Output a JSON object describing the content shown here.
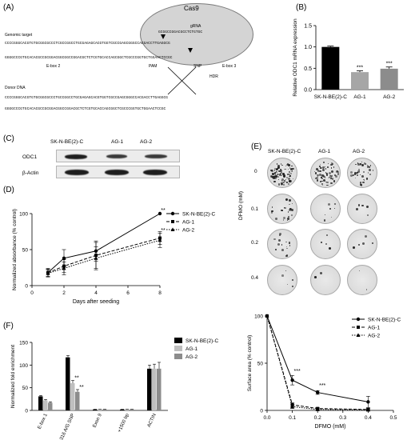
{
  "panels": {
    "A": "(A)",
    "B": "(B)",
    "C": "(C)",
    "D": "(D)",
    "E": "(E)",
    "F": "(F)"
  },
  "panelA": {
    "cas9": "Cas9",
    "grna_label": "gRNA",
    "grna_seq": "GCGGCCGGACGCCTCTGTGC",
    "genomic_label": "Genomic target",
    "donor_label": "Donor DNA",
    "hdr": "HDR",
    "ebox2": "E-box 2",
    "pam": "PAM",
    "snp": "SNP",
    "ebox3": "E-box 3",
    "genomic_top": "CCCCGGGCACGTGTGCGGCGCCCTCGCCGGCCTGCGAGAGCACGTGGTCGCCGAGCGGGCCACGACCTTGAGGCG",
    "genomic_bot": "GGGGCCCGTGCACACGCCGCGGACGGCGGCCGGACGCTCTCGTGCACCAGCGGCTCGCCCGGTGCTGGAACTCCGC",
    "donor_top": "CCCCGGGCACGTGTGCGGCGCCCTGCCGGCCTGCGAGAGCACGTGGTCGCCGAGCGGGCCACGACCTTGAGGCG",
    "donor_bot": "GGGGCCCGTGCACACGCCGCGGACGGCCGGACGCTCTCGTGCACCAGCGGCTCGCCCGGTGCTGGAACTCCGC"
  },
  "panelC": {
    "samples": [
      "SK-N-BE(2)-C",
      "AG-1",
      "AG-2"
    ],
    "rows": [
      "ODC1",
      "β-Actin"
    ]
  },
  "panelE": {
    "samples": [
      "SK-N-BE(2)-C",
      "AG-1",
      "AG-2"
    ],
    "doses": [
      "0",
      "0.1",
      "0.2",
      "0.4"
    ],
    "axis_label": "DFMO (mM)"
  },
  "chart_data": [
    {
      "id": "B",
      "type": "bar",
      "categories": [
        "SK-N-BE(2)-C",
        "AG-1",
        "AG-2"
      ],
      "values": [
        1.0,
        0.41,
        0.49
      ],
      "errors": [
        0.02,
        0.03,
        0.04
      ],
      "colors": [
        "#000000",
        "#a6a6a6",
        "#8c8c8c"
      ],
      "annotations": [
        "",
        "***",
        "***"
      ],
      "ylabel": "Relative ODC1 mRNA expression",
      "ylim": [
        0,
        1.5
      ],
      "yticks": [
        "0.0",
        "0.5",
        "1.0",
        "1.5"
      ]
    },
    {
      "id": "D",
      "type": "line",
      "xlabel": "Days after seeding",
      "ylabel": "Normalized absorbance (% control)",
      "xlim": [
        0,
        8
      ],
      "ylim": [
        0,
        100
      ],
      "xticks": [
        "0",
        "2",
        "4",
        "6",
        "8"
      ],
      "yticks": [
        "0",
        "50",
        "100"
      ],
      "x": [
        1,
        2,
        4,
        8
      ],
      "series": [
        {
          "name": "SK-N-BE(2)-C",
          "values": [
            18,
            38,
            48,
            100
          ],
          "errors": [
            6,
            12,
            14,
            0
          ],
          "marker": "circle",
          "dash": ""
        },
        {
          "name": "AG-1",
          "values": [
            18,
            27,
            42,
            66
          ],
          "errors": [
            5,
            9,
            18,
            9
          ],
          "marker": "square",
          "dash": "4,2"
        },
        {
          "name": "AG-2",
          "values": [
            17,
            24,
            38,
            63
          ],
          "errors": [
            5,
            9,
            16,
            10
          ],
          "marker": "triangle",
          "dash": "1.5,1.5"
        }
      ],
      "annotations": [
        {
          "x": 8,
          "y": 100,
          "text": "**"
        },
        {
          "x": 8,
          "y": 72,
          "text": "**"
        }
      ],
      "legend": "right"
    },
    {
      "id": "E-plot",
      "type": "line",
      "xlabel": "DFMO (mM)",
      "ylabel": "Surface area (% control)",
      "xlim": [
        0,
        0.5
      ],
      "ylim": [
        0,
        100
      ],
      "xticks": [
        "0.0",
        "0.1",
        "0.2",
        "0.3",
        "0.4",
        "0.5"
      ],
      "yticks": [
        "0",
        "50",
        "100"
      ],
      "x": [
        0,
        0.1,
        0.2,
        0.4
      ],
      "series": [
        {
          "name": "SK-N-BE(2)-C",
          "values": [
            100,
            32,
            19,
            9
          ],
          "errors": [
            0,
            5,
            2,
            6
          ],
          "marker": "circle",
          "dash": ""
        },
        {
          "name": "AG-1",
          "values": [
            100,
            6,
            2,
            1
          ],
          "errors": [
            0,
            2,
            1,
            1
          ],
          "marker": "square",
          "dash": "4,2"
        },
        {
          "name": "AG-2",
          "values": [
            100,
            4,
            1,
            0.5
          ],
          "errors": [
            0,
            2,
            1,
            1
          ],
          "marker": "triangle",
          "dash": "1.5,1.5"
        }
      ],
      "annotations": [
        {
          "x": 0.1,
          "y": 38,
          "text": "***"
        },
        {
          "x": 0.2,
          "y": 23,
          "text": "***"
        }
      ],
      "legend": "top-right"
    },
    {
      "id": "F",
      "type": "bar",
      "categories": [
        "E-box 1",
        "+316 A/G SNP",
        "Exon 9",
        "+1500 bp",
        "ACTIN"
      ],
      "ylabel": "Normalized fold enrichment",
      "ylim": [
        0,
        150
      ],
      "yticks": [
        "0",
        "50",
        "100",
        "150"
      ],
      "series": [
        {
          "name": "SK-N-BE(2)-C",
          "color": "#000000",
          "values": [
            31,
            117,
            2,
            2,
            92
          ],
          "errors": [
            2,
            4,
            0.5,
            0.5,
            8
          ]
        },
        {
          "name": "AG-1",
          "color": "#bfbfbf",
          "values": [
            22,
            60,
            2,
            2,
            92
          ],
          "errors": [
            2,
            6,
            0.5,
            0.5,
            10
          ]
        },
        {
          "name": "AG-2",
          "color": "#8c8c8c",
          "values": [
            17,
            41,
            2,
            2,
            92
          ],
          "errors": [
            2,
            5,
            0.5,
            0.5,
            14
          ]
        }
      ],
      "annotations": [
        {
          "cat": 1,
          "series": 1,
          "text": "**"
        },
        {
          "cat": 1,
          "series": 2,
          "text": "**"
        }
      ],
      "legend": "top-right"
    }
  ]
}
